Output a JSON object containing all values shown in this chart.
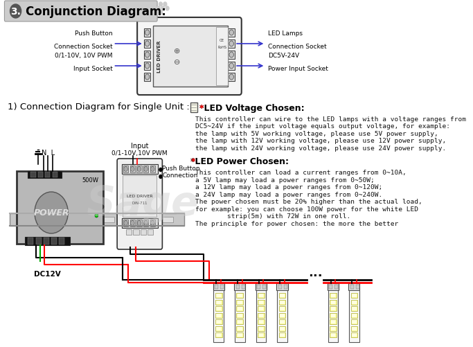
{
  "bg_color": "#ffffff",
  "title_num": "3.",
  "title_text": "Conjunction Diagram:",
  "section_title": "1) Connection Diagram for Single Unit :",
  "led_voltage_title": "*LED Voltage Chosen:",
  "led_voltage_body": [
    "This controller can wire to the LED lamps with a voltage ranges from",
    "DC5~24V if the input voltage equals output voltage, for example:",
    "the lamp with 5V working voltage, please use 5V power supply,",
    "the lamp with 12V working voltage, please use 12V power supply,",
    "the lamp with 24V working voltage, please use 24V power supply."
  ],
  "led_power_title": "*LED Power Chosen:",
  "led_power_body": [
    "This controller can load a current ranges from 0~10A,",
    "a 5V lamp may load a power ranges from 0~50W;",
    "a 12V lamp may load a power ranges from 0~120W;",
    "a 24V lamp may load a power ranges from 0~240W.",
    "The power chosen must be 20% higher than the actual load,",
    "for example: you can choose 100W power for the white LED",
    "        strip(5m) with 72W in one roll.",
    "The principle for power chosen: the more the better"
  ],
  "push_button_top1": "Push Button",
  "push_button_top2": "Connection Socket",
  "input_top1": "0/1-10V, 10V PWM",
  "input_top2": "Input Socket",
  "led_lamps_top1": "LED Lamps",
  "led_lamps_top2": "Connection Socket",
  "dc_top1": "DC5V-24V",
  "dc_top2": "Power Input Socket",
  "input_mid1": "Input",
  "input_mid2": "0/1-10V,10V PWM",
  "push_btn_conn1": "Push Button",
  "push_btn_conn2": "Connection",
  "power_label": "POWER",
  "dc12v_label": "DC12V",
  "watermark": "Sage",
  "dots": "...",
  "n_l_label": "N  L",
  "500w_label": "500W"
}
